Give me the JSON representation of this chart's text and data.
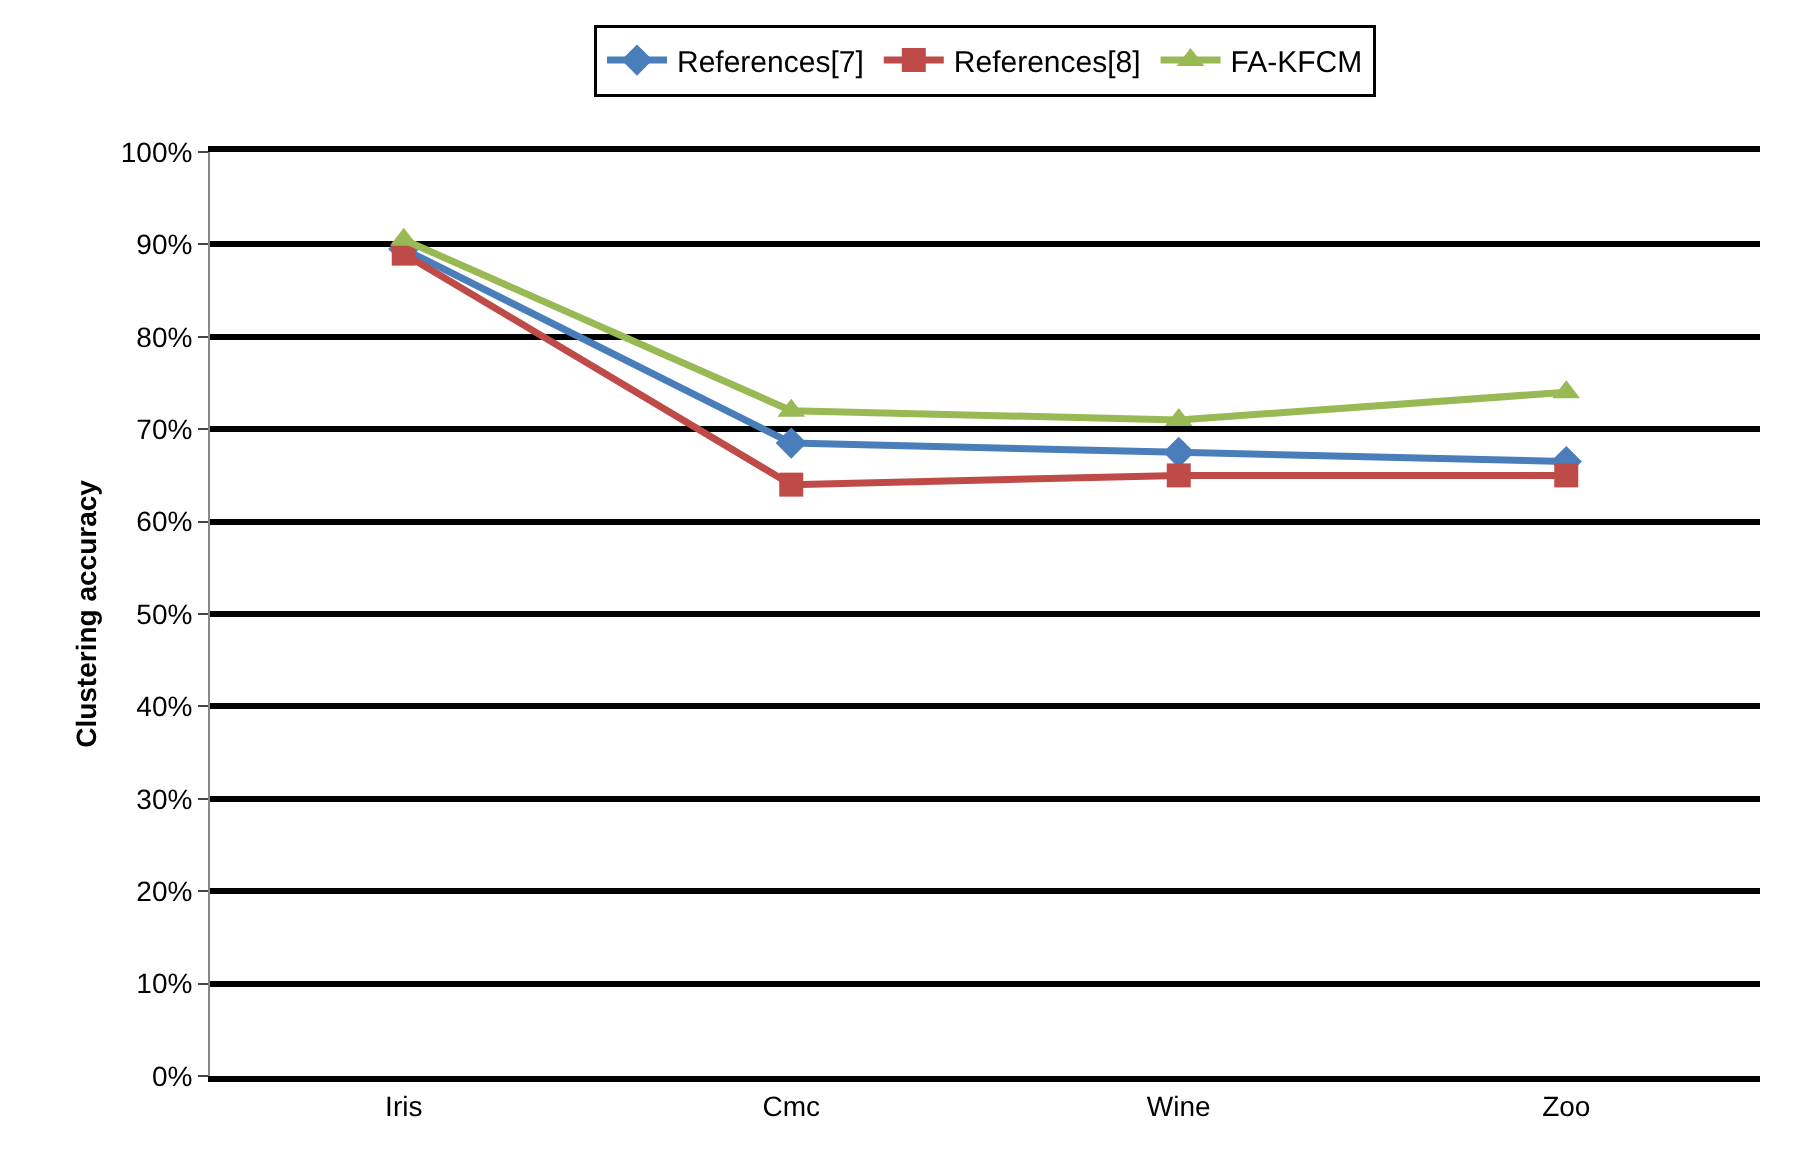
{
  "chart_data": {
    "type": "line",
    "ylabel": "Clustering accuracy",
    "categories": [
      "Iris",
      "Cmc",
      "Wine",
      "Zoo"
    ],
    "series": [
      {
        "name": "References[7]",
        "color": "#4a7ebb",
        "marker": "diamond",
        "values": [
          0.895,
          0.685,
          0.675,
          0.665
        ]
      },
      {
        "name": "References[8]",
        "color": "#be4b48",
        "marker": "square",
        "values": [
          0.89,
          0.64,
          0.65,
          0.65
        ]
      },
      {
        "name": "FA-KFCM",
        "color": "#98b954",
        "marker": "triangle",
        "values": [
          0.905,
          0.72,
          0.71,
          0.74
        ]
      }
    ],
    "ylim": [
      0,
      1
    ],
    "yticks": [
      {
        "value": 0,
        "label": "0%"
      },
      {
        "value": 0.1,
        "label": "10%"
      },
      {
        "value": 0.2,
        "label": "20%"
      },
      {
        "value": 0.3,
        "label": "30%"
      },
      {
        "value": 0.4,
        "label": "40%"
      },
      {
        "value": 0.5,
        "label": "50%"
      },
      {
        "value": 0.6,
        "label": "60%"
      },
      {
        "value": 0.7,
        "label": "70%"
      },
      {
        "value": 0.8,
        "label": "80%"
      },
      {
        "value": 0.9,
        "label": "90%"
      },
      {
        "value": 1,
        "label": "100%"
      }
    ],
    "grid": "y",
    "legend": "top"
  }
}
